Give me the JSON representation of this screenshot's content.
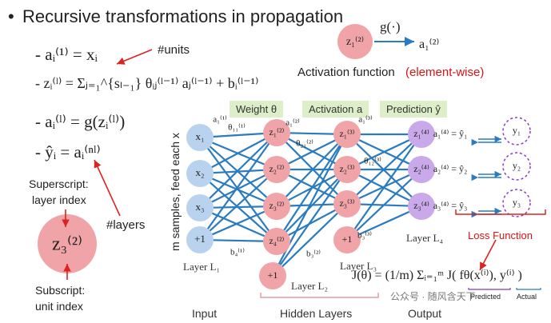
{
  "slide": {
    "title": "Recursive transformations in propagation",
    "bullets": [
      "- aᵢ⁽¹⁾ = xᵢ",
      "- zᵢ⁽ˡ⁾ = Σⱼ₌₁^{sₗ₋₁} θᵢⱼ⁽ˡ⁻¹⁾ aⱼ⁽ˡ⁻¹⁾ + bᵢ⁽ˡ⁻¹⁾",
      "- aᵢ⁽ˡ⁾ = g(zᵢ⁽ˡ⁾)",
      "- ŷᵢ = aᵢ⁽ⁿˡ⁾"
    ],
    "units_note": "#units",
    "layers_note": "#layers",
    "superscript_note": [
      "Superscript:",
      "layer index"
    ],
    "subscript_note": [
      "Subscript:",
      "unit index"
    ],
    "big_node": "z₃⁽²⁾",
    "activation_label": "Activation function",
    "element_wise": "(element-wise)",
    "g_label": "g(·)",
    "z_node": "z₁⁽²⁾",
    "a_out": "a₁⁽²⁾",
    "headers": [
      "Weight θ",
      "Activation a",
      "Prediction ŷ"
    ],
    "side_label": "m samples, feed each x",
    "bottom_labels": [
      "Input",
      "Hidden Layers",
      "Output"
    ],
    "layer_labels": [
      "Layer L₁",
      "Layer L₂",
      "Layer L₃",
      "Layer L₄"
    ],
    "loss_label": "Loss Function",
    "loss_formula": "J(θ) = (1/m) Σᵢ₌₁ᵐ J( fθ(x⁽ⁱ⁾), y⁽ⁱ⁾ )",
    "predicted": "Predicted",
    "actual": "Actual",
    "watermark": "公众号 · 随风含天下",
    "edge_labels": {
      "a11": "a₁⁽¹⁾",
      "th11": "θ₁₁⁽¹⁾",
      "b41": "b₄⁽¹⁾",
      "a12": "a₁⁽²⁾",
      "th21": "θ₂₁⁽²⁾",
      "b32": "b₃⁽²⁾",
      "a13": "a₁⁽³⁾",
      "th12": "θ₁₂⁽³⁾",
      "b33": "b₃⁽³⁾"
    },
    "input_nodes": [
      "x₁",
      "x₂",
      "x₃",
      "+1"
    ],
    "hidden2_nodes": [
      "z₁⁽²⁾",
      "z₂⁽²⁾",
      "z₃⁽²⁾",
      "z₄⁽²⁾",
      "+1"
    ],
    "hidden3_nodes": [
      "z₁⁽³⁾",
      "z₂⁽³⁾",
      "z₃⁽³⁾",
      "+1"
    ],
    "output_nodes": [
      "z₁⁽⁴⁾",
      "z₂⁽⁴⁾",
      "z₃⁽⁴⁾"
    ],
    "output_eqs": [
      "a₁⁽⁴⁾ = ŷ₁",
      "a₂⁽⁴⁾ = ŷ₂",
      "a₃⁽⁴⁾ = ŷ₃"
    ],
    "targets": [
      "y₁",
      "y₂",
      "y₃"
    ]
  },
  "colors": {
    "input": "#b9d2ee",
    "hidden": "#f0a4a8",
    "output": "#c9a9ea",
    "edge": "#2a7bc0",
    "arrow": "#d22",
    "header_bg": "#dcefc9"
  }
}
